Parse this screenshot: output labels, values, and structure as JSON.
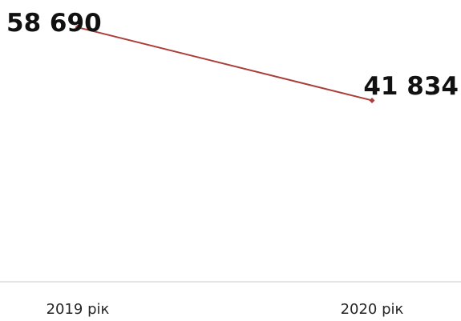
{
  "chart_data": {
    "type": "line",
    "categories": [
      "2019 рік",
      "2020 рік"
    ],
    "series": [
      {
        "values": [
          58690,
          41834
        ],
        "data_labels": [
          "58 690",
          "41 834"
        ]
      }
    ],
    "ylim": [
      0,
      65000
    ],
    "grid": false,
    "legend": "none",
    "colors": {
      "line": "#a83f3a",
      "marker": "#a83f3a",
      "axis": "#c8c8c8"
    }
  }
}
